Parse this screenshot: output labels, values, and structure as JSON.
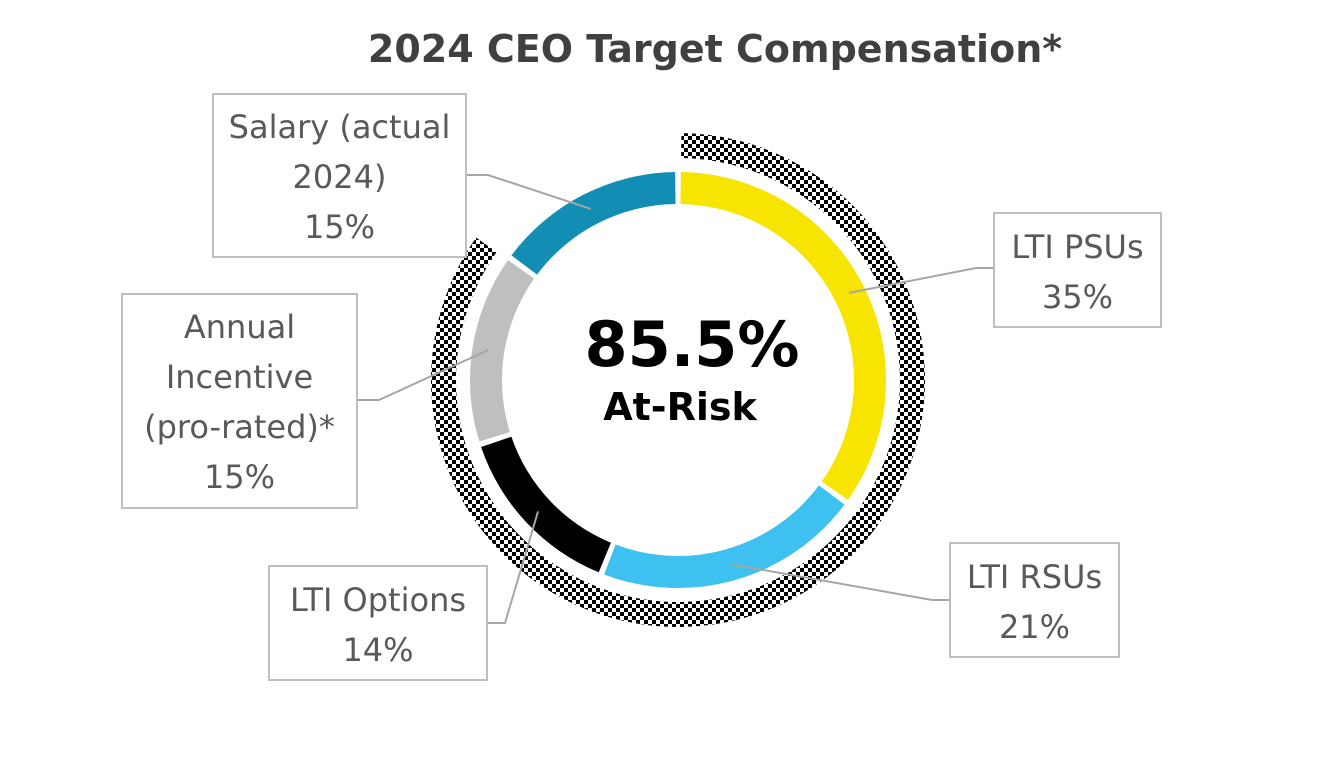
{
  "chart_data": {
    "type": "pie",
    "variant": "donut",
    "title": "2024 CEO Target Compensation*",
    "center_value": "85.5%",
    "center_label": "At-Risk",
    "slices": [
      {
        "id": "lti-psus",
        "label_lines": [
          "LTI PSUs"
        ],
        "value": 35,
        "value_label": "35%",
        "color": "#f7e400",
        "at_risk": true
      },
      {
        "id": "lti-rsus",
        "label_lines": [
          "LTI RSUs"
        ],
        "value": 21,
        "value_label": "21%",
        "color": "#3ec1f0",
        "at_risk": true
      },
      {
        "id": "lti-options",
        "label_lines": [
          "LTI Options"
        ],
        "value": 14,
        "value_label": "14%",
        "color": "#000000",
        "at_risk": true
      },
      {
        "id": "annual-incentive",
        "label_lines": [
          "Annual",
          "Incentive",
          "(pro-rated)*"
        ],
        "value": 15,
        "value_label": "15%",
        "color": "#bfbfbf",
        "at_risk": true
      },
      {
        "id": "salary",
        "label_lines": [
          "Salary (actual",
          "2024)"
        ],
        "value": 15,
        "value_label": "15%",
        "color": "#128db4",
        "at_risk": false
      }
    ],
    "at_risk_ring": {
      "pattern": "checkerboard",
      "colors": [
        "#000000",
        "#ffffff"
      ]
    }
  }
}
